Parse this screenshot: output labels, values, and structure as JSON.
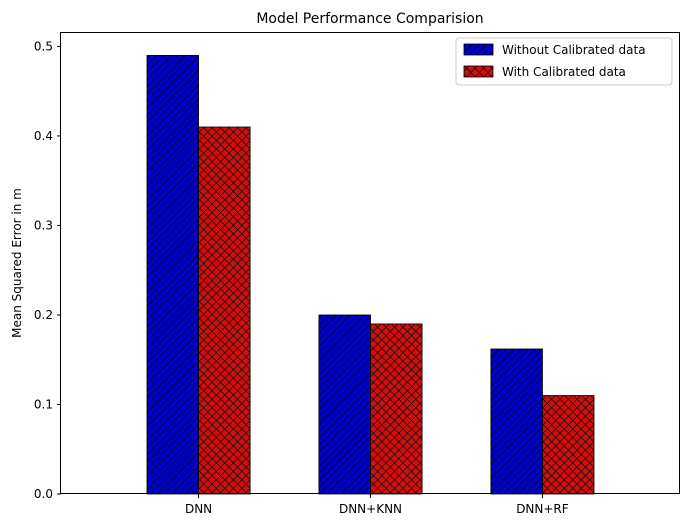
{
  "chart_data": {
    "type": "bar",
    "title": "Model Performance Comparision",
    "xlabel": "",
    "ylabel": "Mean Squared Error in m",
    "categories": [
      "DNN",
      "DNN+KNN",
      "DNN+RF"
    ],
    "series": [
      {
        "name": "Without Calibrated data",
        "values": [
          0.49,
          0.2,
          0.162
        ],
        "color": "#0000cc",
        "hatch": "diagonal"
      },
      {
        "name": "With Calibrated data",
        "values": [
          0.41,
          0.19,
          0.11
        ],
        "color": "#cc1111",
        "hatch": "crosshatch"
      }
    ],
    "ylim": [
      0,
      0.515
    ],
    "yticks": [
      "0.0",
      "0.1",
      "0.2",
      "0.3",
      "0.4",
      "0.5"
    ],
    "grid": false,
    "legend": "top-right"
  }
}
